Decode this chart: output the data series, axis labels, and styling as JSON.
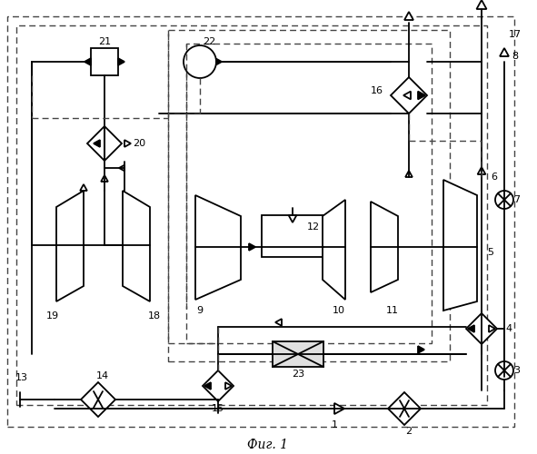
{
  "title": "Фиг. 1",
  "bg": "#ffffff",
  "lc": "#000000",
  "fw": 5.91,
  "fh": 5.0,
  "dpi": 100
}
